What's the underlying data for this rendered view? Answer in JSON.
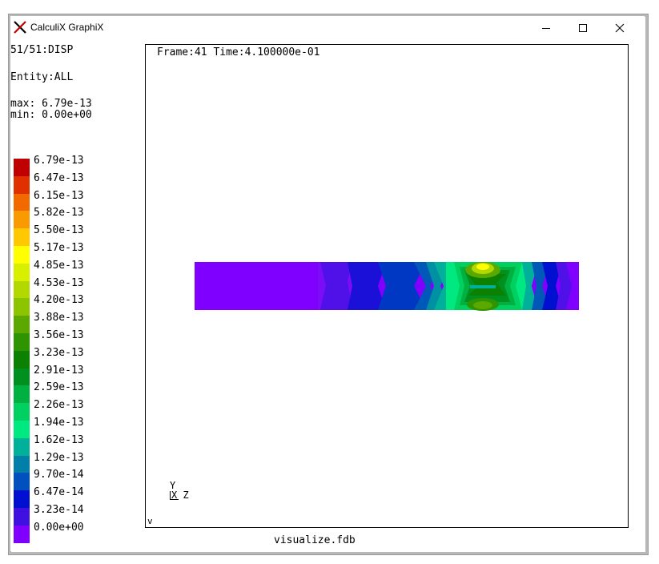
{
  "window": {
    "title": "CalculiX GraphiX"
  },
  "side_panel": {
    "dataset": "51/51:DISP",
    "entity": "Entity:ALL",
    "max": "max: 6.79e-13",
    "min": "min: 0.00e+00"
  },
  "legend": [
    {
      "label": "6.79e-13",
      "color": "#c00000"
    },
    {
      "label": "6.47e-13",
      "color": "#e03000"
    },
    {
      "label": "6.15e-13",
      "color": "#f06a00"
    },
    {
      "label": "5.82e-13",
      "color": "#f89a00"
    },
    {
      "label": "5.50e-13",
      "color": "#ffc800"
    },
    {
      "label": "5.17e-13",
      "color": "#ffff00"
    },
    {
      "label": "4.85e-13",
      "color": "#d8ef00"
    },
    {
      "label": "4.53e-13",
      "color": "#b2d800"
    },
    {
      "label": "4.20e-13",
      "color": "#8cc400"
    },
    {
      "label": "3.88e-13",
      "color": "#5aa800"
    },
    {
      "label": "3.56e-13",
      "color": "#2e9400"
    },
    {
      "label": "3.23e-13",
      "color": "#0c8000"
    },
    {
      "label": "2.91e-13",
      "color": "#009020"
    },
    {
      "label": "2.59e-13",
      "color": "#00b040"
    },
    {
      "label": "2.26e-13",
      "color": "#00d060"
    },
    {
      "label": "1.94e-13",
      "color": "#00e880"
    },
    {
      "label": "1.62e-13",
      "color": "#00b09a"
    },
    {
      "label": "1.29e-13",
      "color": "#0080a8"
    },
    {
      "label": "9.70e-14",
      "color": "#0050c0"
    },
    {
      "label": "6.47e-14",
      "color": "#0010d0"
    },
    {
      "label": "3.23e-14",
      "color": "#4010e0"
    },
    {
      "label": "0.00e+00",
      "color": "#8000ff"
    }
  ],
  "viewport": {
    "frame_info": "Frame:41 Time:4.100000e-01",
    "triad_y": "Y",
    "triad_xz": "X Z",
    "corner_mark": "v"
  },
  "footer": {
    "filename": "visualize.fdb"
  },
  "icons": [
    "calculix-logo-icon",
    "minimize-icon",
    "maximize-icon",
    "close-icon"
  ]
}
